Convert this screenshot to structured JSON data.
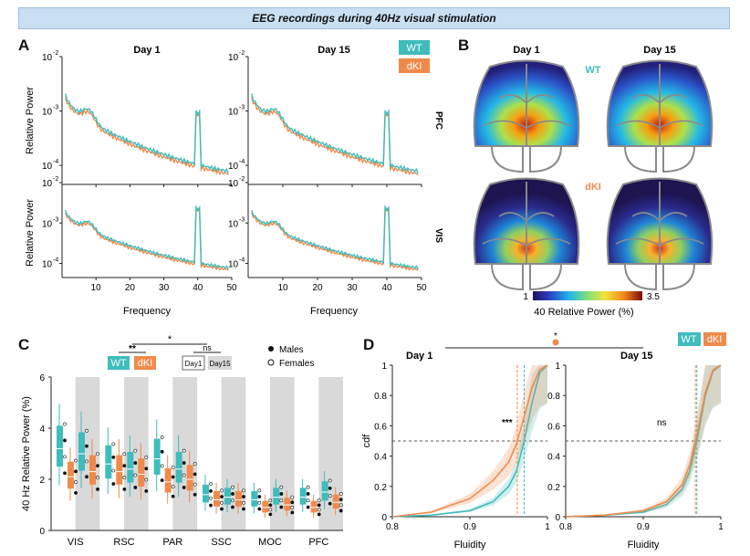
{
  "banner": "EEG recordings during 40Hz visual stimulation",
  "panel_labels": {
    "a": "A",
    "b": "B",
    "c": "C",
    "d": "D"
  },
  "colors": {
    "wt": "#3fbcbc",
    "dki": "#f08a4b",
    "shade": "#d9d9d9"
  },
  "panel_a": {
    "col_titles": [
      "Day 1",
      "Day 15"
    ],
    "row_titles": [
      "PFC",
      "VIS"
    ],
    "ylabel": "Relative Power",
    "xlabel": "Frequency",
    "yticks": [
      "10",
      "10",
      "10"
    ],
    "yexps": [
      "-2",
      "-3",
      "-4"
    ],
    "xticks": [
      "10",
      "20",
      "30",
      "40",
      "50"
    ],
    "legend": [
      "WT",
      "dKI"
    ]
  },
  "panel_b": {
    "col_titles": [
      "Day 1",
      "Day 15"
    ],
    "row_titles": [
      "WT",
      "dKI"
    ],
    "cbar_min": "1",
    "cbar_max": "3.5",
    "cbar_label": "40 Relative Power (%)"
  },
  "panel_c": {
    "ylabel": "40 Hz Relative Power (%)",
    "yticks": [
      "0",
      "2",
      "4",
      "6"
    ],
    "legend": [
      "WT",
      "dKI"
    ],
    "day_legend": [
      "Day1",
      "Day15"
    ],
    "sex_legend": [
      "Males",
      "Females"
    ],
    "sig": {
      "genotype": "**",
      "day": "ns",
      "overall": "*"
    },
    "chart_data": {
      "type": "box",
      "ylim": [
        0,
        6
      ],
      "categories": [
        "VIS",
        "RSC",
        "PAR",
        "SSC",
        "MOC",
        "PFC"
      ],
      "series": [
        {
          "name": "WT Day1",
          "medians": [
            3.2,
            2.6,
            2.8,
            1.4,
            1.2,
            1.3
          ]
        },
        {
          "name": "dKI Day1",
          "medians": [
            2.1,
            2.3,
            1.9,
            1.2,
            0.9,
            0.9
          ]
        },
        {
          "name": "WT Day15",
          "medians": [
            3.0,
            2.4,
            2.4,
            1.3,
            1.3,
            1.5
          ]
        },
        {
          "name": "dKI Day15",
          "medians": [
            2.3,
            2.2,
            2.0,
            1.2,
            1.0,
            1.1
          ]
        }
      ]
    }
  },
  "panel_d": {
    "col_titles": [
      "Day 1",
      "Day 15"
    ],
    "ylabel": "cdf",
    "xlabel": "Fluidity",
    "xticks": [
      "0.8",
      "0.9",
      "1"
    ],
    "yticks": [
      "0",
      "0.2",
      "0.4",
      "0.6",
      "0.8",
      "1"
    ],
    "sig_day1": "***",
    "sig_day15": "ns",
    "sig_top": "*",
    "legend": [
      "WT",
      "dKI"
    ],
    "chart_data": {
      "type": "line",
      "xlim": [
        0.8,
        1.0
      ],
      "ylim": [
        0,
        1
      ],
      "series": [
        {
          "name": "WT Day 1",
          "x": [
            0.8,
            0.85,
            0.9,
            0.93,
            0.95,
            0.96,
            0.97,
            0.98,
            0.99,
            1.0
          ],
          "y": [
            0,
            0.01,
            0.04,
            0.1,
            0.2,
            0.3,
            0.5,
            0.75,
            0.95,
            1.0
          ]
        },
        {
          "name": "dKI Day 1",
          "x": [
            0.8,
            0.85,
            0.9,
            0.93,
            0.95,
            0.96,
            0.97,
            0.98,
            0.99,
            1.0
          ],
          "y": [
            0,
            0.03,
            0.12,
            0.24,
            0.36,
            0.48,
            0.66,
            0.85,
            0.97,
            1.0
          ]
        },
        {
          "name": "WT Day 15",
          "x": [
            0.8,
            0.85,
            0.9,
            0.93,
            0.95,
            0.96,
            0.97,
            0.98,
            0.99,
            1.0
          ],
          "y": [
            0,
            0.01,
            0.03,
            0.08,
            0.18,
            0.3,
            0.52,
            0.8,
            0.96,
            1.0
          ]
        },
        {
          "name": "dKI Day 15",
          "x": [
            0.8,
            0.85,
            0.9,
            0.93,
            0.95,
            0.96,
            0.97,
            0.98,
            0.99,
            1.0
          ],
          "y": [
            0,
            0.01,
            0.04,
            0.1,
            0.21,
            0.34,
            0.56,
            0.82,
            0.97,
            1.0
          ]
        }
      ]
    }
  }
}
